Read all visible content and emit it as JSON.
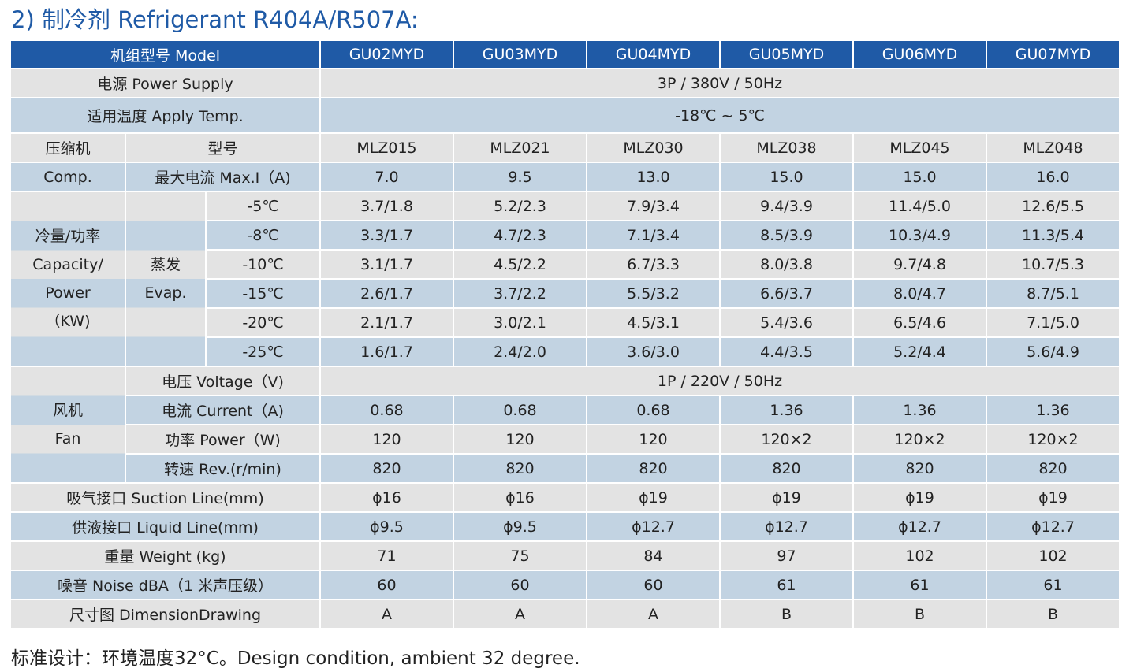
{
  "title": "2) 制冷剂 Refrigerant R404A/R507A:",
  "header": {
    "model_label": "机组型号 Model",
    "models": [
      "GU02MYD",
      "GU03MYD",
      "GU04MYD",
      "GU05MYD",
      "GU06MYD",
      "GU07MYD"
    ]
  },
  "power_supply": {
    "label": "电源 Power Supply",
    "value": "3P / 380V / 50Hz"
  },
  "apply_temp": {
    "label": "适用温度 Apply Temp.",
    "value": "-18℃ ~ 5℃"
  },
  "compressor": {
    "group_label_1": "压缩机",
    "group_label_2": "Comp.",
    "type_label": "型号",
    "types": [
      "MLZ015",
      "MLZ021",
      "MLZ030",
      "MLZ038",
      "MLZ045",
      "MLZ048"
    ],
    "maxi_label": "最大电流 Max.I（A)",
    "maxi": [
      "7.0",
      "9.5",
      "13.0",
      "15.0",
      "15.0",
      "16.0"
    ]
  },
  "capacity": {
    "group_label": [
      "冷量/功率",
      "Capacity/",
      "Power",
      "（KW)"
    ],
    "evap_label": [
      "蒸发",
      "Evap."
    ],
    "rows": [
      {
        "temp": "-5℃",
        "values": [
          "3.7/1.8",
          "5.2/2.3",
          "7.9/3.4",
          "9.4/3.9",
          "11.4/5.0",
          "12.6/5.5"
        ]
      },
      {
        "temp": "-8℃",
        "values": [
          "3.3/1.7",
          "4.7/2.3",
          "7.1/3.4",
          "8.5/3.9",
          "10.3/4.9",
          "11.3/5.4"
        ]
      },
      {
        "temp": "-10℃",
        "values": [
          "3.1/1.7",
          "4.5/2.2",
          "6.7/3.3",
          "8.0/3.8",
          "9.7/4.8",
          "10.7/5.3"
        ]
      },
      {
        "temp": "-15℃",
        "values": [
          "2.6/1.7",
          "3.7/2.2",
          "5.5/3.2",
          "6.6/3.7",
          "8.0/4.7",
          "8.7/5.1"
        ]
      },
      {
        "temp": "-20℃",
        "values": [
          "2.1/1.7",
          "3.0/2.1",
          "4.5/3.1",
          "5.4/3.6",
          "6.5/4.6",
          "7.1/5.0"
        ]
      },
      {
        "temp": "-25℃",
        "values": [
          "1.6/1.7",
          "2.4/2.0",
          "3.6/3.0",
          "4.4/3.5",
          "5.2/4.4",
          "5.6/4.9"
        ]
      }
    ]
  },
  "fan": {
    "group_label_1": "风机",
    "group_label_2": "Fan",
    "voltage_label": "电压 Voltage（V)",
    "voltage": "1P / 220V / 50Hz",
    "current_label": "电流 Current（A)",
    "current": [
      "0.68",
      "0.68",
      "0.68",
      "1.36",
      "1.36",
      "1.36"
    ],
    "power_label": "功率 Power（W)",
    "power": [
      "120",
      "120",
      "120",
      "120×2",
      "120×2",
      "120×2"
    ],
    "rev_label": "转速 Rev.(r/min)",
    "rev": [
      "820",
      "820",
      "820",
      "820",
      "820",
      "820"
    ]
  },
  "suction": {
    "label": "吸气接口 Suction Line(mm)",
    "values": [
      "ϕ16",
      "ϕ16",
      "ϕ19",
      "ϕ19",
      "ϕ19",
      "ϕ19"
    ]
  },
  "liquid": {
    "label": "供液接口 Liquid Line(mm)",
    "values": [
      "ϕ9.5",
      "ϕ9.5",
      "ϕ12.7",
      "ϕ12.7",
      "ϕ12.7",
      "ϕ12.7"
    ]
  },
  "weight": {
    "label": "重量 Weight (kg)",
    "values": [
      "71",
      "75",
      "84",
      "97",
      "102",
      "102"
    ]
  },
  "noise": {
    "label": "噪音 Noise dBA（1 米声压级）",
    "values": [
      "60",
      "60",
      "60",
      "61",
      "61",
      "61"
    ]
  },
  "dimension": {
    "label": "尺寸图 DimensionDrawing",
    "values": [
      "A",
      "A",
      "A",
      "B",
      "B",
      "B"
    ]
  },
  "note": "标准设计：环境温度32°C。Design condition, ambient 32 degree."
}
